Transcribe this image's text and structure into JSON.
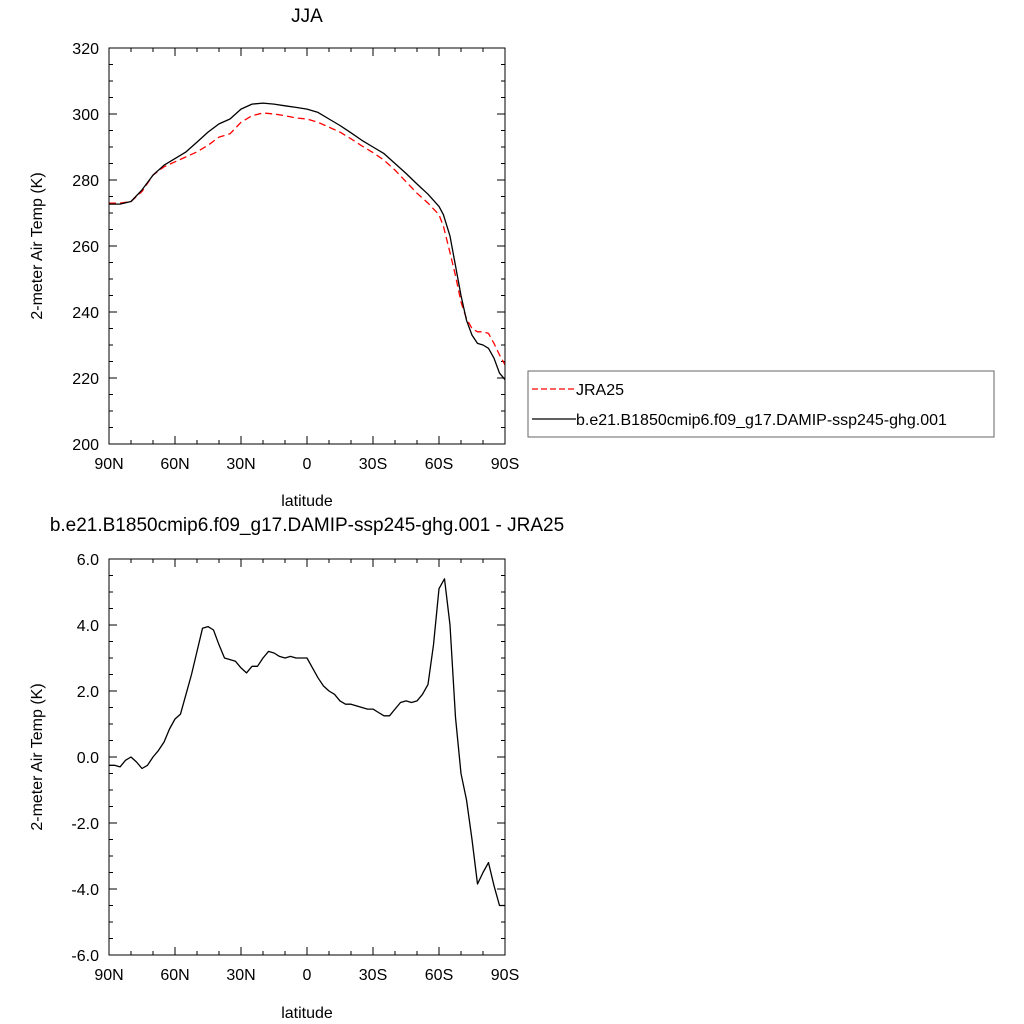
{
  "chart_data": [
    {
      "type": "line",
      "title": "JJA",
      "xlabel": "latitude",
      "ylabel": "2-meter Air Temp (K)",
      "xlim": [
        90,
        -90
      ],
      "ylim": [
        200,
        320
      ],
      "xticks": [
        90,
        60,
        30,
        0,
        -30,
        -60,
        -90
      ],
      "xtick_labels": [
        "90N",
        "60N",
        "30N",
        "0",
        "30S",
        "60S",
        "90S"
      ],
      "yticks": [
        200,
        220,
        240,
        260,
        280,
        300,
        320
      ],
      "ytick_labels": [
        "200",
        "220",
        "240",
        "260",
        "280",
        "300",
        "320"
      ],
      "grid": false,
      "legend_position": "right",
      "series": [
        {
          "name": "JRA25",
          "color": "#ff0000",
          "dash": "dashed",
          "x": [
            90,
            85,
            80,
            75,
            70,
            65,
            60,
            55,
            50,
            45,
            40,
            35,
            30,
            25,
            20,
            15,
            10,
            5,
            0,
            -5,
            -10,
            -15,
            -20,
            -25,
            -30,
            -35,
            -40,
            -45,
            -50,
            -55,
            -60,
            -62,
            -65,
            -67.5,
            -70,
            -72.5,
            -75,
            -77.5,
            -80,
            -82.5,
            -85,
            -87.5,
            -90
          ],
          "values": [
            273.0,
            273.0,
            273.5,
            276.5,
            281.5,
            284.0,
            285.5,
            287.0,
            288.5,
            290.5,
            293.0,
            294.0,
            297.5,
            299.5,
            300.3,
            300.0,
            299.5,
            298.8,
            298.5,
            297.5,
            296.0,
            294.5,
            292.5,
            290.3,
            288.3,
            286.0,
            283.0,
            279.5,
            276.0,
            273.0,
            269.5,
            266.0,
            258.0,
            251.0,
            243.0,
            238.0,
            235.0,
            234.0,
            234.0,
            233.5,
            230.5,
            227.0,
            224.0
          ]
        },
        {
          "name": "b.e21.B1850cmip6.f09_g17.DAMIP-ssp245-ghg.001",
          "color": "#000000",
          "dash": "solid",
          "x": [
            90,
            85,
            80,
            75,
            70,
            65,
            60,
            55,
            50,
            45,
            40,
            35,
            30,
            25,
            20,
            15,
            10,
            5,
            0,
            -5,
            -10,
            -15,
            -20,
            -25,
            -30,
            -35,
            -40,
            -45,
            -50,
            -55,
            -60,
            -62,
            -65,
            -67.5,
            -70,
            -72.5,
            -75,
            -77.5,
            -80,
            -82.5,
            -85,
            -87.5,
            -90
          ],
          "values": [
            272.7,
            272.7,
            273.5,
            277.0,
            281.5,
            284.5,
            286.5,
            288.5,
            291.5,
            294.5,
            297.0,
            298.5,
            301.5,
            303.0,
            303.3,
            303.0,
            302.5,
            302.0,
            301.5,
            300.5,
            298.5,
            296.5,
            294.3,
            292.0,
            290.0,
            288.0,
            285.0,
            282.0,
            278.8,
            275.7,
            272.0,
            269.5,
            263.0,
            254.0,
            245.0,
            237.5,
            233.0,
            230.5,
            230.0,
            229.0,
            226.0,
            221.5,
            219.5
          ]
        }
      ]
    },
    {
      "type": "line",
      "title": "b.e21.B1850cmip6.f09_g17.DAMIP-ssp245-ghg.001 - JRA25",
      "xlabel": "latitude",
      "ylabel": "2-meter Air Temp (K)",
      "xlim": [
        90,
        -90
      ],
      "ylim": [
        -6,
        6
      ],
      "xticks": [
        90,
        60,
        30,
        0,
        -30,
        -60,
        -90
      ],
      "xtick_labels": [
        "90N",
        "60N",
        "30N",
        "0",
        "30S",
        "60S",
        "90S"
      ],
      "yticks": [
        -6,
        -4,
        -2,
        0,
        2,
        4,
        6
      ],
      "ytick_labels": [
        "-6.0",
        "-4.0",
        "-2.0",
        "0.0",
        "2.0",
        "4.0",
        "6.0"
      ],
      "grid": false,
      "series": [
        {
          "color": "#000000",
          "dash": "solid",
          "x": [
            90,
            87.5,
            85,
            82.5,
            80,
            77.5,
            75,
            72.5,
            70,
            67.5,
            65,
            62.5,
            60,
            57.5,
            55,
            52.5,
            50,
            47.5,
            45,
            42.5,
            40,
            37.5,
            35,
            32.5,
            30,
            27.5,
            25,
            22.5,
            20,
            17.5,
            15,
            12.5,
            10,
            7.5,
            5,
            2.5,
            0,
            -2.5,
            -5,
            -7.5,
            -10,
            -12.5,
            -15,
            -17.5,
            -20,
            -22.5,
            -25,
            -27.5,
            -30,
            -32.5,
            -35,
            -37.5,
            -40,
            -42.5,
            -45,
            -47.5,
            -50,
            -52.5,
            -55,
            -57.5,
            -60,
            -62.5,
            -65,
            -67.5,
            -70,
            -72.5,
            -75,
            -77.5,
            -80,
            -82.5,
            -85,
            -87.5,
            -90
          ],
          "values": [
            -0.25,
            -0.25,
            -0.3,
            -0.1,
            0.0,
            -0.15,
            -0.35,
            -0.25,
            0.0,
            0.2,
            0.45,
            0.85,
            1.15,
            1.3,
            1.9,
            2.5,
            3.2,
            3.9,
            3.95,
            3.85,
            3.4,
            3.0,
            2.95,
            2.9,
            2.7,
            2.55,
            2.75,
            2.75,
            3.0,
            3.2,
            3.15,
            3.05,
            3.0,
            3.05,
            3.0,
            3.0,
            3.0,
            2.7,
            2.4,
            2.15,
            2.0,
            1.9,
            1.7,
            1.6,
            1.6,
            1.55,
            1.5,
            1.45,
            1.45,
            1.35,
            1.25,
            1.25,
            1.45,
            1.65,
            1.7,
            1.65,
            1.7,
            1.9,
            2.2,
            3.4,
            5.1,
            5.4,
            4.0,
            1.2,
            -0.5,
            -1.3,
            -2.5,
            -3.85,
            -3.5,
            -3.2,
            -3.9,
            -4.5,
            -4.5
          ]
        }
      ]
    }
  ]
}
